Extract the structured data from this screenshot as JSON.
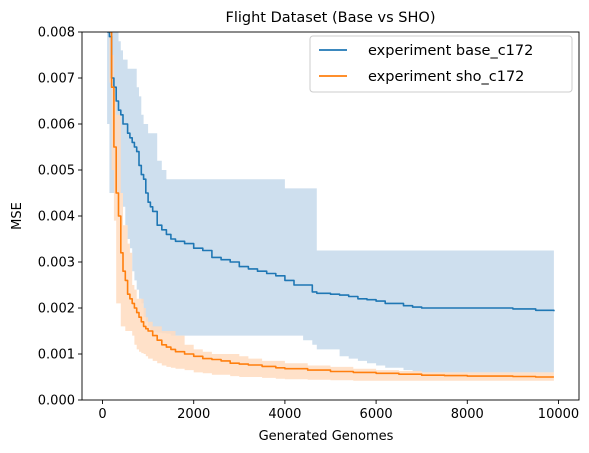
{
  "chart_data": {
    "type": "line",
    "title": "Flight Dataset (Base vs SHO)",
    "xlabel": "Generated Genomes",
    "ylabel": "MSE",
    "xlim": [
      -450,
      10450
    ],
    "ylim": [
      0,
      0.008
    ],
    "xticks": [
      0,
      2000,
      4000,
      6000,
      8000,
      10000
    ],
    "xtick_labels": [
      "0",
      "2000",
      "4000",
      "6000",
      "8000",
      "10000"
    ],
    "yticks": [
      0,
      0.001,
      0.002,
      0.003,
      0.004,
      0.005,
      0.006,
      0.007,
      0.008
    ],
    "ytick_labels": [
      "0.000",
      "0.001",
      "0.002",
      "0.003",
      "0.004",
      "0.005",
      "0.006",
      "0.007",
      "0.008"
    ],
    "grid": false,
    "legend_position": "top-right",
    "series": [
      {
        "name": "experiment base_c172",
        "color": "#1f77b4",
        "band_color": "#c5d9eb",
        "x": [
          100,
          150,
          200,
          250,
          300,
          350,
          400,
          450,
          500,
          550,
          600,
          650,
          700,
          750,
          800,
          850,
          900,
          950,
          1000,
          1050,
          1100,
          1200,
          1300,
          1400,
          1500,
          1600,
          1800,
          2000,
          2200,
          2400,
          2600,
          2800,
          3000,
          3200,
          3400,
          3600,
          3800,
          4000,
          4200,
          4400,
          4600,
          4700,
          5000,
          5200,
          5400,
          5600,
          5800,
          6000,
          6200,
          6400,
          6600,
          6800,
          7000,
          7500,
          8000,
          8500,
          9000,
          9500,
          9900
        ],
        "y": [
          0.008,
          0.0079,
          0.007,
          0.0068,
          0.0065,
          0.0063,
          0.0062,
          0.006,
          0.006,
          0.0058,
          0.0057,
          0.0056,
          0.0055,
          0.0054,
          0.0051,
          0.0049,
          0.0048,
          0.0045,
          0.0043,
          0.0042,
          0.0041,
          0.0038,
          0.0037,
          0.0036,
          0.0035,
          0.00345,
          0.0034,
          0.0033,
          0.00325,
          0.0031,
          0.00305,
          0.003,
          0.0029,
          0.00285,
          0.0028,
          0.00275,
          0.0027,
          0.0026,
          0.0025,
          0.0025,
          0.00235,
          0.00232,
          0.0023,
          0.00228,
          0.00225,
          0.0022,
          0.00218,
          0.00215,
          0.0021,
          0.0021,
          0.00205,
          0.00202,
          0.002,
          0.002,
          0.002,
          0.002,
          0.00198,
          0.00195,
          0.00193
        ],
        "upper": [
          0.008,
          0.008,
          0.008,
          0.008,
          0.008,
          0.0078,
          0.0076,
          0.0074,
          0.0074,
          0.0072,
          0.0072,
          0.0072,
          0.0072,
          0.0068,
          0.0066,
          0.0062,
          0.006,
          0.006,
          0.0058,
          0.0058,
          0.0058,
          0.0052,
          0.005,
          0.0048,
          0.0048,
          0.0048,
          0.0048,
          0.0048,
          0.0048,
          0.0048,
          0.0048,
          0.0048,
          0.0048,
          0.0048,
          0.0048,
          0.0048,
          0.0048,
          0.0046,
          0.0046,
          0.0046,
          0.0046,
          0.00325,
          0.00325,
          0.00325,
          0.00325,
          0.00325,
          0.00325,
          0.00325,
          0.00325,
          0.00325,
          0.00325,
          0.00325,
          0.00325,
          0.00325,
          0.00325,
          0.00325,
          0.00325,
          0.00325,
          0.00325
        ],
        "lower": [
          0.006,
          0.0045,
          0.0045,
          0.0045,
          0.0045,
          0.0045,
          0.0045,
          0.0042,
          0.0038,
          0.0035,
          0.0033,
          0.0028,
          0.0026,
          0.0024,
          0.0022,
          0.0021,
          0.0018,
          0.0017,
          0.0016,
          0.0015,
          0.00148,
          0.00146,
          0.00145,
          0.00144,
          0.0014,
          0.0014,
          0.0014,
          0.0014,
          0.0014,
          0.0014,
          0.0014,
          0.0014,
          0.0014,
          0.0014,
          0.0014,
          0.0014,
          0.0014,
          0.0014,
          0.0014,
          0.0013,
          0.0012,
          0.0011,
          0.0011,
          0.00095,
          0.0009,
          0.00085,
          0.0008,
          0.00075,
          0.0007,
          0.0007,
          0.00065,
          0.00062,
          0.0006,
          0.0006,
          0.0006,
          0.0006,
          0.0006,
          0.0006,
          0.0006
        ]
      },
      {
        "name": "experiment sho_c172",
        "color": "#ff7f0e",
        "band_color": "#ffdcbf",
        "x": [
          150,
          200,
          250,
          300,
          350,
          400,
          450,
          500,
          550,
          600,
          650,
          700,
          750,
          800,
          850,
          900,
          950,
          1000,
          1100,
          1200,
          1300,
          1400,
          1500,
          1600,
          1800,
          2000,
          2200,
          2400,
          2600,
          2800,
          3000,
          3200,
          3500,
          3800,
          4000,
          4500,
          5000,
          5500,
          6000,
          6500,
          7000,
          7500,
          8000,
          8500,
          9000,
          9500,
          9900
        ],
        "y": [
          0.008,
          0.0068,
          0.0055,
          0.0045,
          0.004,
          0.0032,
          0.0028,
          0.0026,
          0.0023,
          0.0022,
          0.0021,
          0.002,
          0.0019,
          0.0018,
          0.0017,
          0.0016,
          0.00155,
          0.0015,
          0.0014,
          0.0013,
          0.0012,
          0.00115,
          0.0011,
          0.00105,
          0.001,
          0.00095,
          0.0009,
          0.00088,
          0.00085,
          0.0008,
          0.00078,
          0.00076,
          0.00073,
          0.0007,
          0.00068,
          0.00065,
          0.00062,
          0.0006,
          0.00058,
          0.00056,
          0.00054,
          0.00053,
          0.00052,
          0.00052,
          0.00051,
          0.0005,
          0.0005
        ],
        "upper": [
          0.008,
          0.0075,
          0.0066,
          0.0062,
          0.0062,
          0.0045,
          0.0038,
          0.0038,
          0.0034,
          0.0032,
          0.0025,
          0.0024,
          0.0022,
          0.0022,
          0.0022,
          0.002,
          0.0018,
          0.0017,
          0.0016,
          0.0016,
          0.0015,
          0.0015,
          0.0015,
          0.0014,
          0.0012,
          0.0011,
          0.00105,
          0.001,
          0.001,
          0.001,
          0.00095,
          0.0009,
          0.00085,
          0.00085,
          0.0008,
          0.00075,
          0.00072,
          0.00068,
          0.00065,
          0.00063,
          0.0006,
          0.0006,
          0.0006,
          0.0006,
          0.0006,
          0.0006,
          0.0006
        ],
        "lower": [
          0.0069,
          0.005,
          0.0039,
          0.0021,
          0.0021,
          0.0016,
          0.0016,
          0.0015,
          0.0015,
          0.0015,
          0.0014,
          0.0012,
          0.0011,
          0.00105,
          0.00102,
          0.001,
          0.00095,
          0.0009,
          0.00085,
          0.0008,
          0.00075,
          0.00072,
          0.0007,
          0.00068,
          0.00065,
          0.0006,
          0.00058,
          0.00055,
          0.00055,
          0.00052,
          0.0005,
          0.0005,
          0.00048,
          0.00046,
          0.00045,
          0.00044,
          0.00043,
          0.00042,
          0.00042,
          0.00042,
          0.00042,
          0.00042,
          0.00042,
          0.00042,
          0.00042,
          0.00042,
          0.00042
        ]
      }
    ]
  }
}
